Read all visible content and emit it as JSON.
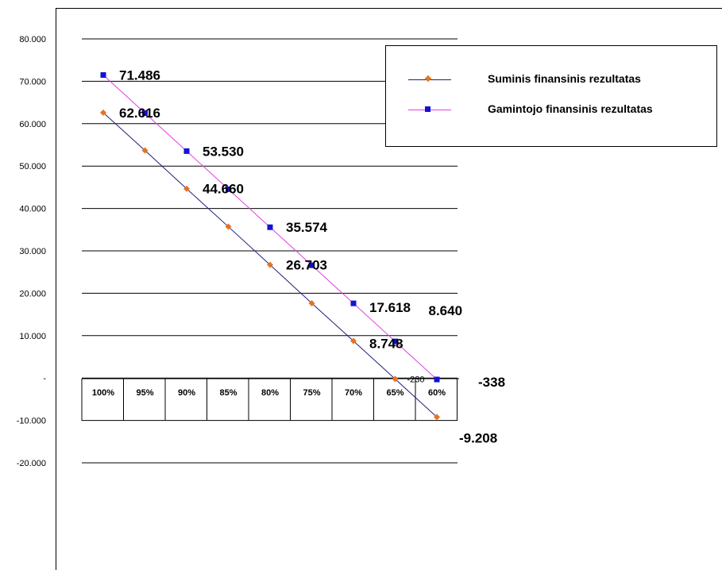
{
  "chart_data": {
    "type": "line",
    "categories": [
      "100%",
      "95%",
      "90%",
      "85%",
      "80%",
      "75%",
      "70%",
      "65%",
      "60%"
    ],
    "y_tick_labels": [
      "80.000",
      "70.000",
      "60.000",
      "50.000",
      "40.000",
      "30.000",
      "20.000",
      "10.000",
      "-",
      "-10.000",
      "-20.000"
    ],
    "ylim": [
      -20000,
      80000
    ],
    "grid": true,
    "legend_position": "top-right",
    "series": [
      {
        "name": "Suminis finansinis rezultatas",
        "color": "#E8731E",
        "line_color": "#1F1F7A",
        "marker": "diamond",
        "values": [
          62616,
          53680,
          44660,
          35700,
          26703,
          17650,
          8748,
          -230,
          -9208
        ],
        "labels": [
          "62.616",
          "",
          "44.660",
          "",
          "26.703",
          "",
          "8.748",
          "-230",
          "-9.208"
        ]
      },
      {
        "name": "Gamintojo finansinis rezultatas",
        "color": "#1212D8",
        "line_color": "#E040E0",
        "marker": "square",
        "values": [
          71486,
          62500,
          53530,
          44550,
          35574,
          26600,
          17618,
          8640,
          -338
        ],
        "labels": [
          "71.486",
          "",
          "53.530",
          "",
          "35.574",
          "",
          "17.618",
          "8.640",
          "-338"
        ]
      }
    ]
  }
}
